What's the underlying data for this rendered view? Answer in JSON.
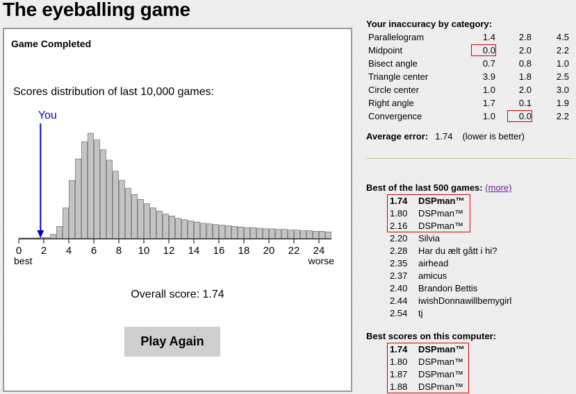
{
  "title": "The eyeballing game",
  "panel": {
    "heading": "Game Completed",
    "distribution_label": "Scores distribution of last 10,000 games:",
    "you_label": "You",
    "you_score": 1.74,
    "best_label": "best",
    "worse_label": "worse",
    "overall_label": "Overall score: 1.74",
    "play_again": "Play Again"
  },
  "chart_data": {
    "type": "bar",
    "x_ticks": [
      "0",
      "2",
      "4",
      "6",
      "8",
      "10",
      "12",
      "14",
      "16",
      "18",
      "20",
      "22",
      "24"
    ],
    "xlim": [
      0,
      25
    ],
    "bin_width": 0.5,
    "values": [
      1,
      1,
      1,
      2,
      2,
      7,
      20,
      50,
      95,
      130,
      158,
      172,
      161,
      145,
      128,
      110,
      95,
      82,
      72,
      64,
      57,
      50,
      45,
      40,
      37,
      33,
      31,
      29,
      27,
      25,
      24,
      23,
      22,
      21,
      20,
      19,
      18,
      18,
      17,
      16,
      16,
      15,
      15,
      14,
      14,
      13,
      13,
      12,
      12,
      11
    ]
  },
  "inaccuracy": {
    "heading": "Your inaccuracy by category:",
    "rows": [
      {
        "name": "Parallelogram",
        "v1": "1.4",
        "v2": "2.8",
        "v3": "4.5",
        "box": 0
      },
      {
        "name": "Midpoint",
        "v1": "0.0",
        "v2": "2.0",
        "v3": "2.2",
        "box": 1
      },
      {
        "name": "Bisect angle",
        "v1": "0.7",
        "v2": "0.8",
        "v3": "1.0",
        "box": 0
      },
      {
        "name": "Triangle center",
        "v1": "3.9",
        "v2": "1.8",
        "v3": "2.5",
        "box": 0
      },
      {
        "name": "Circle center",
        "v1": "1.0",
        "v2": "2.0",
        "v3": "3.0",
        "box": 0
      },
      {
        "name": "Right angle",
        "v1": "1.7",
        "v2": "0.1",
        "v3": "1.9",
        "box": 0
      },
      {
        "name": "Convergence",
        "v1": "1.0",
        "v2": "0.0",
        "v3": "2.2",
        "box": 2
      }
    ],
    "average_label": "Average error:",
    "average_value": "1.74",
    "average_note": "(lower is better)"
  },
  "best500": {
    "heading": "Best of the last 500 games:",
    "more": "(more)",
    "rows": [
      {
        "score": "1.74",
        "name": "DSPman™",
        "bold": true
      },
      {
        "score": "1.80",
        "name": "DSPman™",
        "bold": false
      },
      {
        "score": "2.16",
        "name": "DSPman™",
        "bold": false
      },
      {
        "score": "2.20",
        "name": "Silvia",
        "bold": false
      },
      {
        "score": "2.28",
        "name": "Har du ælt gått i hi?",
        "bold": false
      },
      {
        "score": "2.35",
        "name": "airhead",
        "bold": false
      },
      {
        "score": "2.37",
        "name": "amicus",
        "bold": false
      },
      {
        "score": "2.40",
        "name": "Brandon Bettis",
        "bold": false
      },
      {
        "score": "2.44",
        "name": "iwishDonnawillbemygirl",
        "bold": false
      },
      {
        "score": "2.54",
        "name": "tj",
        "bold": false
      }
    ]
  },
  "best_local": {
    "heading": "Best scores on this computer:",
    "rows": [
      {
        "score": "1.74",
        "name": "DSPman™",
        "bold": true
      },
      {
        "score": "1.80",
        "name": "DSPman™",
        "bold": false
      },
      {
        "score": "1.87",
        "name": "DSPman™",
        "bold": false
      },
      {
        "score": "1.88",
        "name": "DSPman™",
        "bold": false
      }
    ]
  }
}
